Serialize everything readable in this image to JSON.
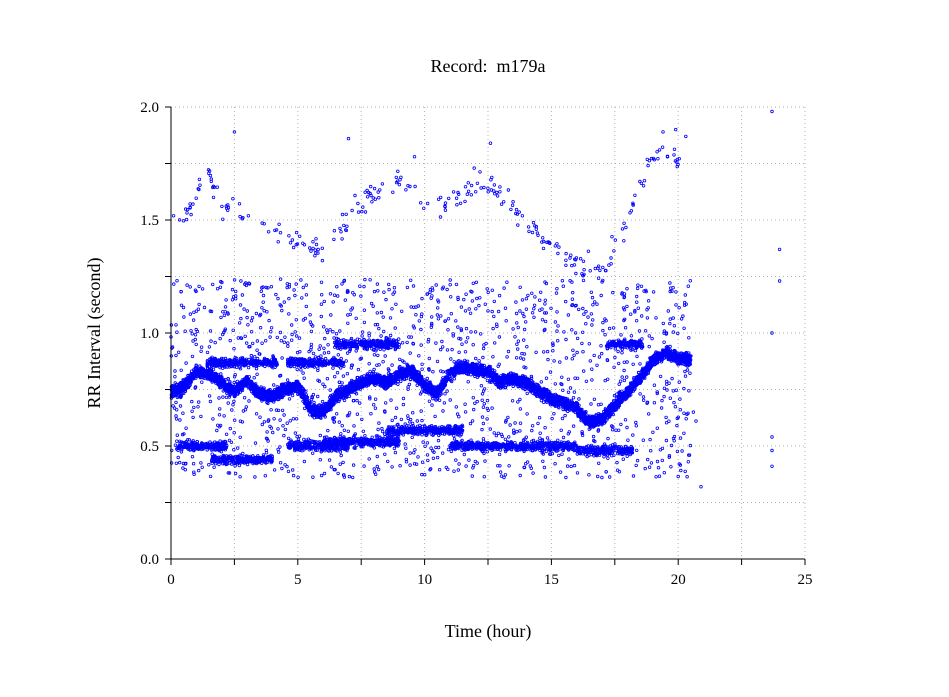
{
  "chart_data": {
    "type": "scatter",
    "title": "Record:  m179a",
    "xlabel": "Time (hour)",
    "ylabel": "RR Interval (second)",
    "xlim": [
      0,
      25
    ],
    "ylim": [
      0,
      2.0
    ],
    "x_ticks": [
      "0",
      "5",
      "10",
      "15",
      "20",
      "25"
    ],
    "y_ticks": [
      "0.0",
      "0.5",
      "1.0",
      "1.5",
      "2.0"
    ],
    "grid": true,
    "marker_color": "#0000ff",
    "series": [
      {
        "baseline": [
          [
            0.0,
            0.74
          ],
          [
            0.5,
            0.76
          ],
          [
            1.0,
            0.83
          ],
          [
            1.5,
            0.82
          ],
          [
            2.0,
            0.78
          ],
          [
            2.5,
            0.74
          ],
          [
            3.0,
            0.79
          ],
          [
            3.5,
            0.73
          ],
          [
            4.0,
            0.72
          ],
          [
            4.5,
            0.75
          ],
          [
            5.0,
            0.77
          ],
          [
            5.5,
            0.66
          ],
          [
            6.0,
            0.65
          ],
          [
            6.5,
            0.72
          ],
          [
            7.0,
            0.75
          ],
          [
            7.5,
            0.78
          ],
          [
            8.0,
            0.8
          ],
          [
            8.5,
            0.78
          ],
          [
            9.0,
            0.82
          ],
          [
            9.5,
            0.83
          ],
          [
            10.0,
            0.77
          ],
          [
            10.5,
            0.73
          ],
          [
            11.0,
            0.82
          ],
          [
            11.5,
            0.85
          ],
          [
            12.0,
            0.84
          ],
          [
            12.5,
            0.83
          ],
          [
            13.0,
            0.78
          ],
          [
            13.5,
            0.8
          ],
          [
            14.0,
            0.78
          ],
          [
            14.5,
            0.74
          ],
          [
            15.0,
            0.71
          ],
          [
            15.5,
            0.69
          ],
          [
            16.0,
            0.67
          ],
          [
            16.5,
            0.6
          ],
          [
            17.0,
            0.62
          ],
          [
            17.5,
            0.68
          ],
          [
            18.0,
            0.74
          ],
          [
            18.5,
            0.8
          ],
          [
            19.0,
            0.88
          ],
          [
            19.5,
            0.91
          ],
          [
            20.0,
            0.89
          ],
          [
            20.5,
            0.88
          ]
        ],
        "secondary_bands": [
          {
            "x_from": 0.2,
            "x_to": 2.2,
            "y": 0.5
          },
          {
            "x_from": 1.4,
            "x_to": 4.2,
            "y": 0.87
          },
          {
            "x_from": 1.6,
            "x_to": 4.0,
            "y": 0.44
          },
          {
            "x_from": 4.6,
            "x_to": 7.0,
            "y": 0.5
          },
          {
            "x_from": 4.6,
            "x_to": 6.8,
            "y": 0.87
          },
          {
            "x_from": 6.0,
            "x_to": 9.0,
            "y": 0.52
          },
          {
            "x_from": 6.5,
            "x_to": 9.0,
            "y": 0.95
          },
          {
            "x_from": 8.5,
            "x_to": 11.5,
            "y": 0.57
          },
          {
            "x_from": 11.0,
            "x_to": 16.0,
            "y": 0.5
          },
          {
            "x_from": 16.0,
            "x_to": 18.2,
            "y": 0.48
          },
          {
            "x_from": 17.2,
            "x_to": 18.6,
            "y": 0.95
          }
        ],
        "high_arc": [
          [
            0.1,
            1.52
          ],
          [
            0.5,
            1.5
          ],
          [
            1.0,
            1.62
          ],
          [
            1.4,
            1.72
          ],
          [
            2.0,
            1.56
          ],
          [
            3.0,
            1.52
          ],
          [
            4.0,
            1.46
          ],
          [
            5.0,
            1.4
          ],
          [
            6.0,
            1.36
          ],
          [
            7.0,
            1.5
          ],
          [
            8.0,
            1.62
          ],
          [
            9.0,
            1.68
          ],
          [
            10.0,
            1.58
          ],
          [
            11.0,
            1.55
          ],
          [
            12.0,
            1.68
          ],
          [
            13.0,
            1.62
          ],
          [
            14.0,
            1.5
          ],
          [
            15.0,
            1.38
          ],
          [
            16.0,
            1.3
          ],
          [
            17.0,
            1.28
          ],
          [
            18.0,
            1.5
          ],
          [
            18.5,
            1.65
          ],
          [
            19.0,
            1.78
          ],
          [
            19.5,
            1.82
          ],
          [
            20.0,
            1.77
          ]
        ],
        "isolated_points": [
          [
            23.7,
            1.98
          ],
          [
            23.7,
            1.0
          ],
          [
            23.7,
            0.54
          ],
          [
            23.7,
            0.48
          ],
          [
            23.7,
            0.41
          ],
          [
            24.0,
            1.37
          ],
          [
            24.0,
            1.23
          ],
          [
            20.6,
            0.65
          ],
          [
            20.7,
            0.61
          ],
          [
            20.9,
            0.32
          ],
          [
            20.4,
            0.43
          ],
          [
            2.5,
            1.89
          ],
          [
            7.0,
            1.86
          ],
          [
            9.6,
            1.78
          ],
          [
            12.6,
            1.84
          ],
          [
            19.9,
            1.9
          ],
          [
            20.3,
            1.87
          ],
          [
            19.4,
            1.89
          ]
        ]
      }
    ]
  }
}
